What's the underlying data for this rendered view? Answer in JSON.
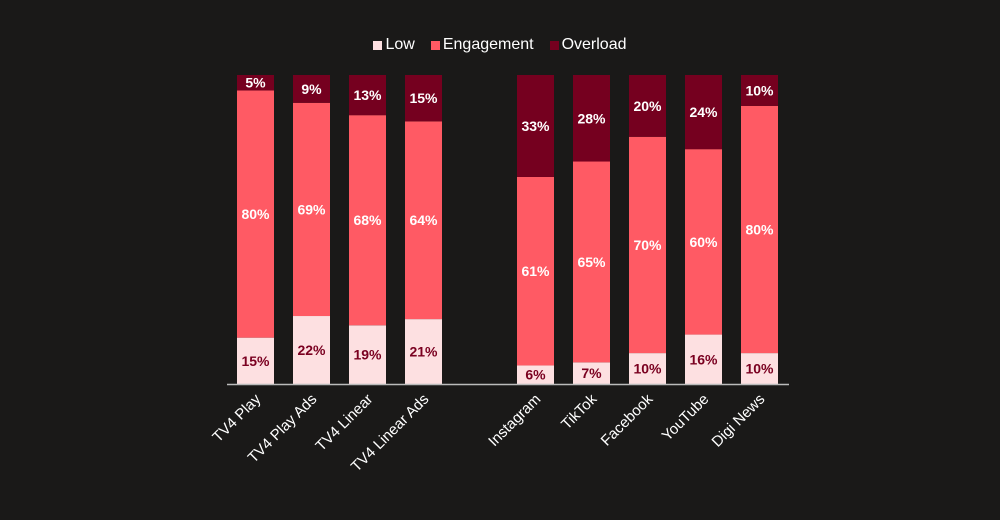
{
  "chart_data": {
    "type": "bar",
    "stacked": true,
    "title": "",
    "xlabel": "",
    "ylabel": "",
    "ylim": [
      0,
      100
    ],
    "grid": false,
    "legend_position": "top-center",
    "categories": [
      "TV4 Play",
      "TV4 Play Ads",
      "TV4 Linear",
      "TV4 Linear Ads",
      "Instagram",
      "TikTok",
      "Facebook",
      "YouTube",
      "Digi News"
    ],
    "groups": [
      [
        "TV4 Play",
        "TV4 Play Ads",
        "TV4 Linear",
        "TV4 Linear Ads"
      ],
      [
        "Instagram",
        "TikTok",
        "Facebook",
        "YouTube",
        "Digi News"
      ]
    ],
    "series": [
      {
        "name": "Low",
        "color": "#fde0e1",
        "label_color": "#7a0020",
        "values": [
          15,
          22,
          19,
          21,
          6,
          7,
          10,
          16,
          10
        ]
      },
      {
        "name": "Engagement",
        "color": "#ff5a64",
        "label_color": "#ffffff",
        "values": [
          80,
          69,
          68,
          64,
          61,
          65,
          70,
          60,
          80
        ]
      },
      {
        "name": "Overload",
        "color": "#75001f",
        "label_color": "#ffffff",
        "values": [
          5,
          9,
          13,
          15,
          33,
          28,
          20,
          24,
          10
        ]
      }
    ],
    "value_suffix": "%"
  }
}
